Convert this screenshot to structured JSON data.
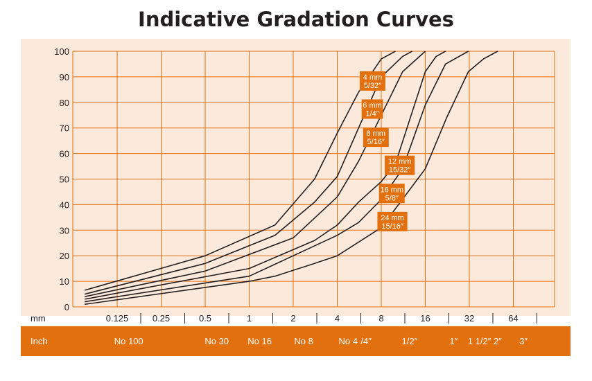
{
  "chart_data": {
    "type": "line",
    "title": "Indicative Gradation Curves",
    "xlabel": "mm",
    "ylabel": "",
    "ylim": [
      0,
      100
    ],
    "yticks": [
      0,
      10,
      20,
      30,
      40,
      50,
      60,
      70,
      80,
      90,
      100
    ],
    "x_scale": "log",
    "mm_ticks": [
      "0.125",
      "0.25",
      "0.5",
      "1",
      "2",
      "4",
      "8",
      "16",
      "32",
      "64"
    ],
    "inch_label": "Inch",
    "inch_ticks": [
      {
        "label": "No 100",
        "mm": 0.15
      },
      {
        "label": "No 30",
        "mm": 0.6
      },
      {
        "label": "No 16",
        "mm": 1.18
      },
      {
        "label": "No 8",
        "mm": 2.36
      },
      {
        "label": "No 4",
        "mm": 4.75
      },
      {
        "label": "/4″",
        "mm": 6.3
      },
      {
        "label": "1/2″",
        "mm": 12.5
      },
      {
        "label": "1″",
        "mm": 25
      },
      {
        "label": "1 1/2″",
        "mm": 37.5
      },
      {
        "label": "2″",
        "mm": 50
      },
      {
        "label": "3″",
        "mm": 75
      }
    ],
    "grid": true,
    "colors": {
      "background": "#fbe9dc",
      "grid": "#e2700f",
      "curve": "#231f20",
      "band": "#e2700f",
      "label_box": "#e2700f"
    },
    "series": [
      {
        "name": "4 mm\n5/32″",
        "x": [
          0.075,
          0.5,
          1.5,
          2.8,
          4,
          5.6,
          8,
          10
        ],
        "y": [
          6.5,
          20,
          32,
          50,
          68,
          84,
          97,
          100
        ]
      },
      {
        "name": "6 mm\n1/4″",
        "x": [
          0.075,
          0.5,
          1.5,
          2.8,
          4,
          5.6,
          8,
          11.2,
          13
        ],
        "y": [
          5,
          17,
          28,
          41,
          51,
          70,
          90,
          98,
          100
        ]
      },
      {
        "name": "8 mm\n5/16″",
        "x": [
          0.075,
          0.5,
          2,
          4,
          5.6,
          8,
          11.2,
          16
        ],
        "y": [
          4,
          14,
          27,
          43,
          57,
          75,
          92,
          100
        ]
      },
      {
        "name": "12 mm\n15/32″",
        "x": [
          0.075,
          1,
          2.8,
          4,
          5.6,
          8,
          10,
          16,
          19,
          22
        ],
        "y": [
          3,
          15,
          26,
          32,
          41,
          49,
          56,
          92,
          98,
          100
        ]
      },
      {
        "name": "16 mm\n5/8″",
        "x": [
          0.075,
          1,
          2,
          4,
          5.6,
          8,
          11.2,
          16,
          22,
          31.5
        ],
        "y": [
          2,
          12,
          20,
          28,
          33,
          42,
          54,
          79,
          95,
          100
        ]
      },
      {
        "name": "24 mm\n15/16″",
        "x": [
          0.075,
          1,
          1.5,
          2.8,
          4,
          8,
          16,
          22.4,
          31.5,
          40,
          50
        ],
        "y": [
          1,
          10,
          12,
          17,
          20,
          31,
          54,
          74,
          92,
          97,
          100
        ]
      }
    ]
  }
}
